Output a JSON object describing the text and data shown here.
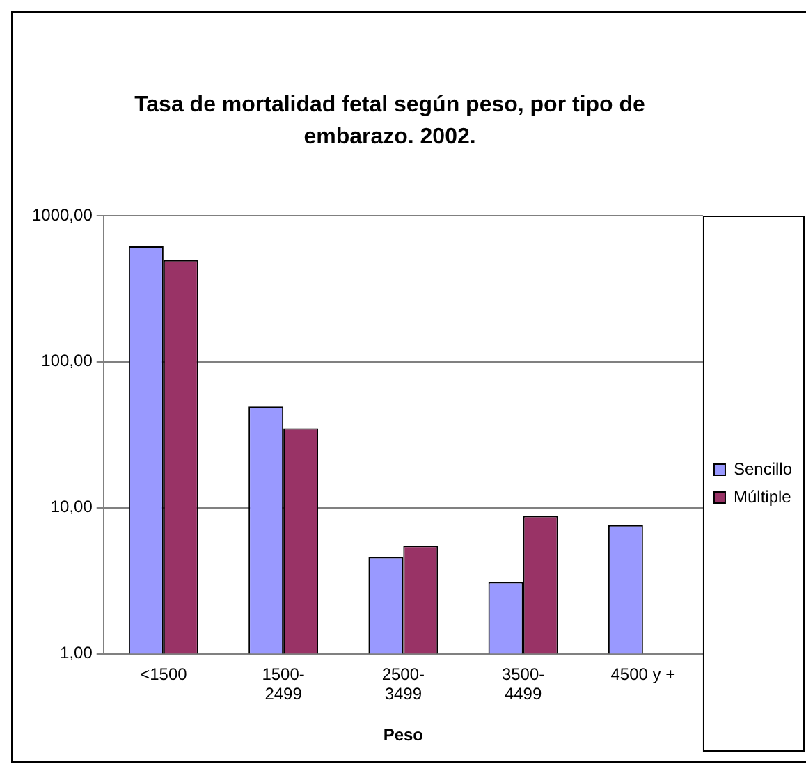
{
  "chart_data": {
    "type": "bar",
    "title": "Tasa de mortalidad fetal según peso, por tipo de embarazo. 2002.",
    "xlabel": "Peso",
    "categories": [
      "<1500",
      "1500-2499",
      "2500-3499",
      "3500-4499",
      "4500 y +"
    ],
    "series": [
      {
        "name": "Sencillo",
        "color": "#9999ff",
        "values": [
          617,
          49.4,
          4.6,
          3.1,
          7.6
        ]
      },
      {
        "name": "Múltiple",
        "color": "#993366",
        "values": [
          497,
          35,
          5.5,
          8.8,
          null
        ]
      }
    ],
    "log": "y",
    "ylim": [
      1,
      1000
    ],
    "yticks": [
      {
        "value": 1,
        "label": "1,00"
      },
      {
        "value": 10,
        "label": "10,00"
      },
      {
        "value": 100,
        "label": "100,00"
      },
      {
        "value": 1000,
        "label": "1000,00"
      }
    ],
    "grid": "y",
    "legend": "right"
  }
}
